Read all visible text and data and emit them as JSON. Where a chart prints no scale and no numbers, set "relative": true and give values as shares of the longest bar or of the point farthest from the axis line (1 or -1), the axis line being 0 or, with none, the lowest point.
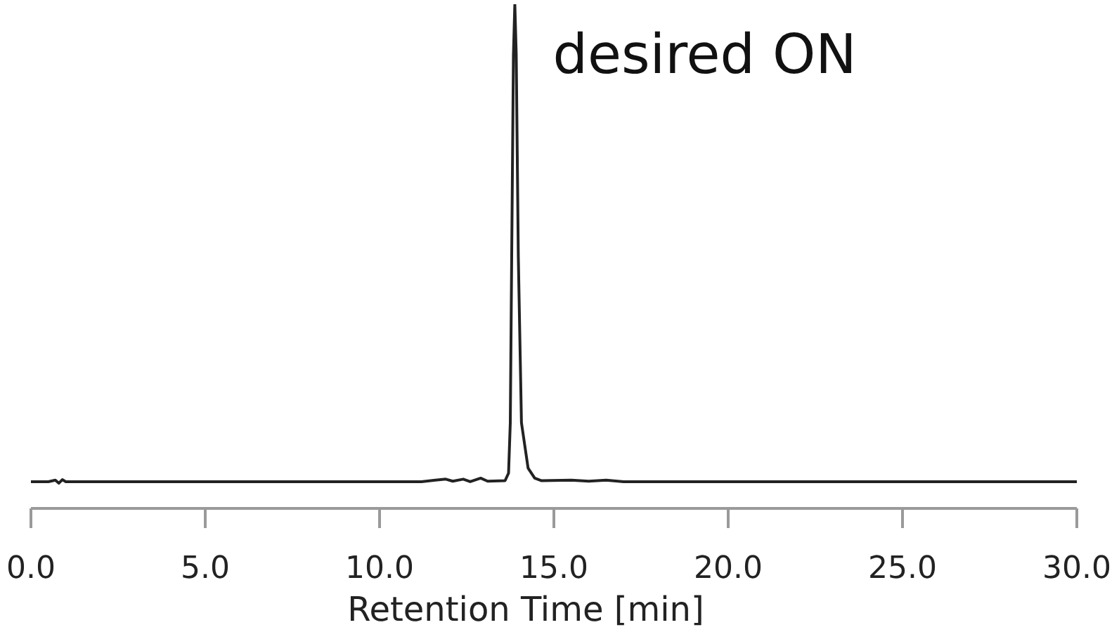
{
  "chart_data": {
    "type": "line",
    "relative": true,
    "xlabel": "Retention Time [min]",
    "xlim": [
      0,
      30
    ],
    "xticks": [
      {
        "value": 0,
        "label": "0.0"
      },
      {
        "value": 5,
        "label": "5.0"
      },
      {
        "value": 10,
        "label": "10.0"
      },
      {
        "value": 15,
        "label": "15.0"
      },
      {
        "value": 20,
        "label": "20.0"
      },
      {
        "value": 25,
        "label": "25.0"
      },
      {
        "value": 30,
        "label": "30.0"
      }
    ],
    "tick_labels": "x",
    "marker": "none",
    "line_style": "solid",
    "color": "#222222",
    "annotations": [
      {
        "text": "desired ON",
        "x": 13.88,
        "y": 1
      }
    ],
    "x": [
      0,
      0.5,
      0.7,
      0.8,
      0.9,
      1.0,
      5,
      10,
      11.2,
      11.6,
      11.9,
      12.1,
      12.4,
      12.6,
      12.9,
      13.1,
      13.6,
      13.7,
      13.75,
      13.79,
      13.84,
      13.88,
      13.92,
      13.98,
      14.07,
      14.26,
      14.45,
      14.65,
      15.5,
      16.0,
      16.5,
      17.0,
      20,
      25,
      30
    ],
    "values": [
      0.053,
      0.053,
      0.056,
      0.05,
      0.057,
      0.053,
      0.053,
      0.053,
      0.053,
      0.056,
      0.058,
      0.054,
      0.058,
      0.053,
      0.06,
      0.054,
      0.055,
      0.07,
      0.17,
      0.5,
      0.9,
      1,
      0.9,
      0.5,
      0.17,
      0.08,
      0.06,
      0.055,
      0.056,
      0.054,
      0.056,
      0.053,
      0.053,
      0.053,
      0.053
    ]
  }
}
